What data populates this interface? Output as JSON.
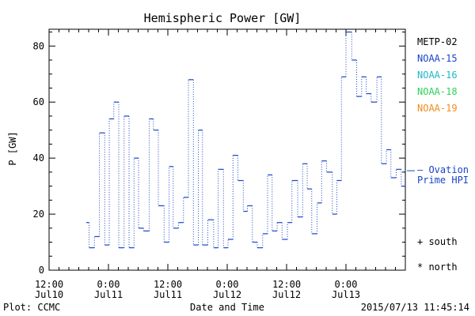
{
  "chart_data": {
    "type": "line",
    "title": "Hemispheric Power [GW]",
    "ylabel": "P [GW]",
    "xlabel": "Date and Time",
    "ylim": [
      0,
      86
    ],
    "yticks": [
      0,
      20,
      40,
      60,
      80
    ],
    "x_tick_labels": [
      {
        "t": "2015-07-10 12:00",
        "l1": "12:00",
        "l2": "Jul10"
      },
      {
        "t": "2015-07-11 00:00",
        "l1": "0:00",
        "l2": "Jul11"
      },
      {
        "t": "2015-07-11 12:00",
        "l1": "12:00",
        "l2": "Jul11"
      },
      {
        "t": "2015-07-12 00:00",
        "l1": "0:00",
        "l2": "Jul12"
      },
      {
        "t": "2015-07-12 12:00",
        "l1": "12:00",
        "l2": "Jul12"
      },
      {
        "t": "2015-07-13 00:00",
        "l1": "0:00",
        "l2": "Jul13"
      }
    ],
    "xlim": [
      "2015-07-10 12:00",
      "2015-07-13 12:00"
    ],
    "legend": {
      "placement": "right",
      "entries": [
        {
          "name": "METP-02",
          "color": "#000000"
        },
        {
          "name": "NOAA-15",
          "color": "#1a44c8"
        },
        {
          "name": "NOAA-16",
          "color": "#1fb7c9"
        },
        {
          "name": "NOAA-18",
          "color": "#2fd15a"
        },
        {
          "name": "NOAA-19",
          "color": "#f28c1e"
        }
      ],
      "ovation_label_1": "— Ovation",
      "ovation_label_2": "Prime HPI",
      "ovation_value": 35.5,
      "south_label": "+ south",
      "north_label": "* north"
    },
    "series": [
      {
        "color": "#1a44c8",
        "x": [
          "2015-07-10 19:30",
          "2015-07-10 20:05",
          "2015-07-10 21:10",
          "2015-07-10 22:10",
          "2015-07-10 23:15",
          "2015-07-11 00:10",
          "2015-07-11 01:05",
          "2015-07-11 02:05",
          "2015-07-11 03:10",
          "2015-07-11 04:10",
          "2015-07-11 05:10",
          "2015-07-11 06:05",
          "2015-07-11 07:05",
          "2015-07-11 08:15",
          "2015-07-11 09:05",
          "2015-07-11 10:05",
          "2015-07-11 11:15",
          "2015-07-11 12:15",
          "2015-07-11 13:05",
          "2015-07-11 14:10",
          "2015-07-11 15:10",
          "2015-07-11 16:10",
          "2015-07-11 17:10",
          "2015-07-11 18:10",
          "2015-07-11 19:00",
          "2015-07-11 20:05",
          "2015-07-11 21:15",
          "2015-07-11 22:10",
          "2015-07-11 23:15",
          "2015-07-12 00:10",
          "2015-07-12 01:10",
          "2015-07-12 02:10",
          "2015-07-12 03:15",
          "2015-07-12 04:05",
          "2015-07-12 05:05",
          "2015-07-12 06:05",
          "2015-07-12 07:10",
          "2015-07-12 08:10",
          "2015-07-12 09:05",
          "2015-07-12 10:05",
          "2015-07-12 11:05",
          "2015-07-12 12:10",
          "2015-07-12 13:05",
          "2015-07-12 14:15",
          "2015-07-12 15:15",
          "2015-07-12 16:10",
          "2015-07-12 17:05",
          "2015-07-12 18:10",
          "2015-07-12 19:05",
          "2015-07-12 20:05",
          "2015-07-12 21:15",
          "2015-07-12 22:10",
          "2015-07-12 23:05",
          "2015-07-13 00:00",
          "2015-07-13 01:10",
          "2015-07-13 02:10",
          "2015-07-13 03:10",
          "2015-07-13 04:05",
          "2015-07-13 05:05",
          "2015-07-13 06:15",
          "2015-07-13 07:10",
          "2015-07-13 08:10",
          "2015-07-13 09:05",
          "2015-07-13 10:10",
          "2015-07-13 11:10"
        ],
        "y": [
          17,
          8,
          12,
          49,
          9,
          54,
          60,
          8,
          55,
          8,
          40,
          15,
          14,
          54,
          50,
          23,
          10,
          37,
          15,
          17,
          26,
          68,
          9,
          50,
          9,
          18,
          8,
          36,
          8,
          11,
          41,
          32,
          21,
          23,
          10,
          8,
          13,
          34,
          14,
          17,
          11,
          17,
          32,
          19,
          38,
          29,
          13,
          24,
          39,
          35,
          20,
          32,
          69,
          85,
          75,
          62,
          69,
          63,
          60,
          69,
          38,
          43,
          33,
          36,
          30
        ]
      }
    ]
  },
  "footer": {
    "left": "Plot: CCMC",
    "center": "Date and Time",
    "right": "2015/07/13 11:45:14"
  }
}
